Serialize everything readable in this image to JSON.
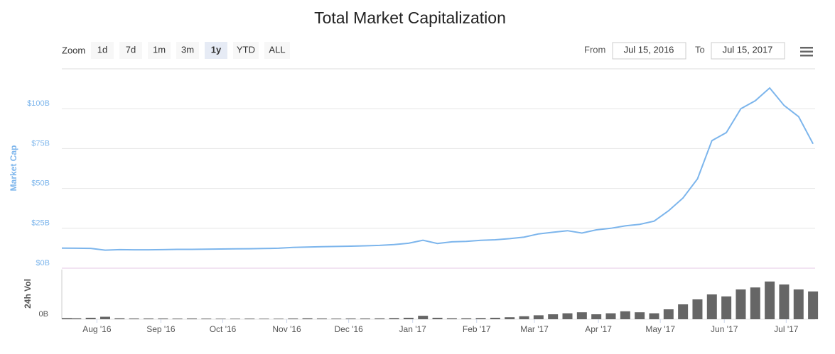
{
  "chart_data": {
    "type": "line",
    "title": "Total Market Capitalization",
    "zoom_label": "Zoom",
    "zoom_buttons": [
      "1d",
      "7d",
      "1m",
      "3m",
      "1y",
      "YTD",
      "ALL"
    ],
    "selected_zoom": 4,
    "range_from_label": "From",
    "range_from": "Jul 15, 2016",
    "range_to_label": "To",
    "range_to": "Jul 15, 2017",
    "x": [
      "2016-07-15",
      "2016-07-22",
      "2016-07-29",
      "2016-08-05",
      "2016-08-12",
      "2016-08-19",
      "2016-08-26",
      "2016-09-02",
      "2016-09-09",
      "2016-09-16",
      "2016-09-23",
      "2016-09-30",
      "2016-10-07",
      "2016-10-14",
      "2016-10-21",
      "2016-10-28",
      "2016-11-04",
      "2016-11-11",
      "2016-11-18",
      "2016-11-25",
      "2016-12-02",
      "2016-12-09",
      "2016-12-16",
      "2016-12-23",
      "2016-12-30",
      "2017-01-06",
      "2017-01-13",
      "2017-01-20",
      "2017-01-27",
      "2017-02-03",
      "2017-02-10",
      "2017-02-17",
      "2017-02-24",
      "2017-03-03",
      "2017-03-10",
      "2017-03-17",
      "2017-03-24",
      "2017-03-31",
      "2017-04-07",
      "2017-04-14",
      "2017-04-21",
      "2017-04-28",
      "2017-05-05",
      "2017-05-12",
      "2017-05-19",
      "2017-05-26",
      "2017-06-02",
      "2017-06-09",
      "2017-06-16",
      "2017-06-23",
      "2017-06-30",
      "2017-07-07",
      "2017-07-14"
    ],
    "xlim": [
      "2016-07-15",
      "2017-07-15"
    ],
    "xticks": [
      {
        "value": "2016-08-01",
        "label": "Aug '16"
      },
      {
        "value": "2016-09-01",
        "label": "Sep '16"
      },
      {
        "value": "2016-10-01",
        "label": "Oct '16"
      },
      {
        "value": "2016-11-01",
        "label": "Nov '16"
      },
      {
        "value": "2016-12-01",
        "label": "Dec '16"
      },
      {
        "value": "2017-01-01",
        "label": "Jan '17"
      },
      {
        "value": "2017-02-01",
        "label": "Feb '17"
      },
      {
        "value": "2017-03-01",
        "label": "Mar '17"
      },
      {
        "value": "2017-04-01",
        "label": "Apr '17"
      },
      {
        "value": "2017-05-01",
        "label": "May '17"
      },
      {
        "value": "2017-06-01",
        "label": "Jun '17"
      },
      {
        "value": "2017-07-01",
        "label": "Jul '17"
      }
    ],
    "ylim": [
      0,
      125
    ],
    "yticks": [
      {
        "value": 0,
        "label": "$0B"
      },
      {
        "value": 25,
        "label": "$25B"
      },
      {
        "value": 50,
        "label": "$50B"
      },
      {
        "value": 75,
        "label": "$75B"
      },
      {
        "value": 100,
        "label": "$100B"
      }
    ],
    "y2lim": [
      0,
      5
    ],
    "y2ticks": [
      {
        "value": 0,
        "label": "0B"
      }
    ],
    "grid": true,
    "series": [
      {
        "name": "Market Cap",
        "color": "#7cb5ec",
        "values": [
          12.6,
          12.5,
          12.4,
          11.3,
          11.6,
          11.5,
          11.5,
          11.6,
          11.8,
          11.8,
          11.9,
          12.0,
          12.1,
          12.2,
          12.3,
          12.5,
          13.0,
          13.2,
          13.5,
          13.6,
          13.8,
          14.0,
          14.3,
          14.8,
          15.6,
          17.5,
          15.5,
          16.5,
          16.8,
          17.5,
          17.8,
          18.5,
          19.5,
          21.5,
          22.5,
          23.5,
          22,
          24,
          25,
          26.5,
          27.5,
          29.5,
          36,
          44,
          56,
          80,
          85,
          100,
          105,
          113,
          102,
          95,
          78
        ]
      },
      {
        "name": "24h Vol",
        "type": "bar",
        "axis": "y2",
        "color": "#666666",
        "values": [
          0.12,
          0.1,
          0.15,
          0.25,
          0.1,
          0.08,
          0.08,
          0.08,
          0.07,
          0.08,
          0.07,
          0.06,
          0.06,
          0.07,
          0.06,
          0.06,
          0.08,
          0.1,
          0.08,
          0.07,
          0.08,
          0.08,
          0.09,
          0.12,
          0.15,
          0.35,
          0.15,
          0.1,
          0.1,
          0.12,
          0.15,
          0.2,
          0.3,
          0.4,
          0.5,
          0.6,
          0.7,
          0.5,
          0.6,
          0.8,
          0.7,
          0.6,
          1.0,
          1.5,
          2.0,
          2.5,
          2.3,
          3.0,
          3.2,
          3.8,
          3.5,
          3.0,
          2.8
        ]
      }
    ]
  }
}
